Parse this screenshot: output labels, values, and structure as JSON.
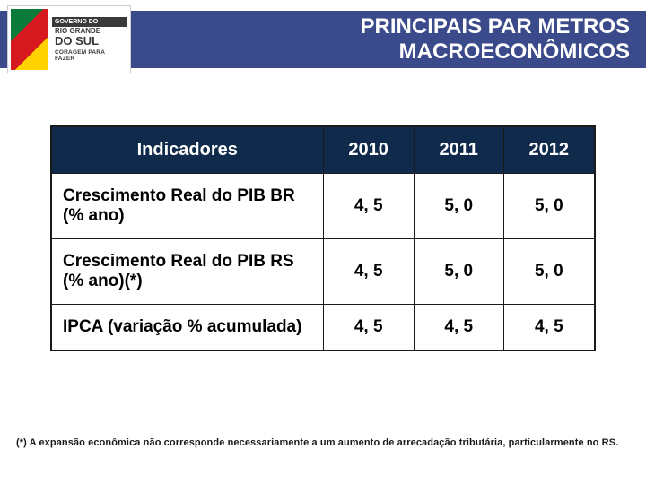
{
  "logo": {
    "top": "GOVERNO DO",
    "mid": "RIO GRANDE",
    "big": "DO SUL",
    "tag": "CORAGEM PARA FAZER"
  },
  "header": {
    "title_line1": "PRINCIPAIS PAR METROS",
    "title_line2": "MACROECONÔMICOS"
  },
  "table": {
    "columns": [
      "Indicadores",
      "2010",
      "2011",
      "2012"
    ],
    "rows": [
      [
        "Crescimento Real do PIB BR (% ano)",
        "4, 5",
        "5, 0",
        "5, 0"
      ],
      [
        "Crescimento Real do PIB RS (% ano)(*)",
        "4, 5",
        "5, 0",
        "5, 0"
      ],
      [
        "IPCA (variação % acumulada)",
        "4, 5",
        "4, 5",
        "4, 5"
      ]
    ],
    "header_bg": "#0f2a4a",
    "header_color": "#ffffff",
    "border_color": "#1a1a1a",
    "cell_fontsize": 19,
    "header_fontsize": 20,
    "col_widths": [
      "50%",
      "16.6%",
      "16.6%",
      "16.6%"
    ]
  },
  "footnote": "(*) A expansão econômica não corresponde necessariamente a um aumento de arrecadação tributária, particularmente no RS.",
  "colors": {
    "header_bar": "#3b4a8a",
    "background": "#ffffff",
    "text": "#000000"
  }
}
